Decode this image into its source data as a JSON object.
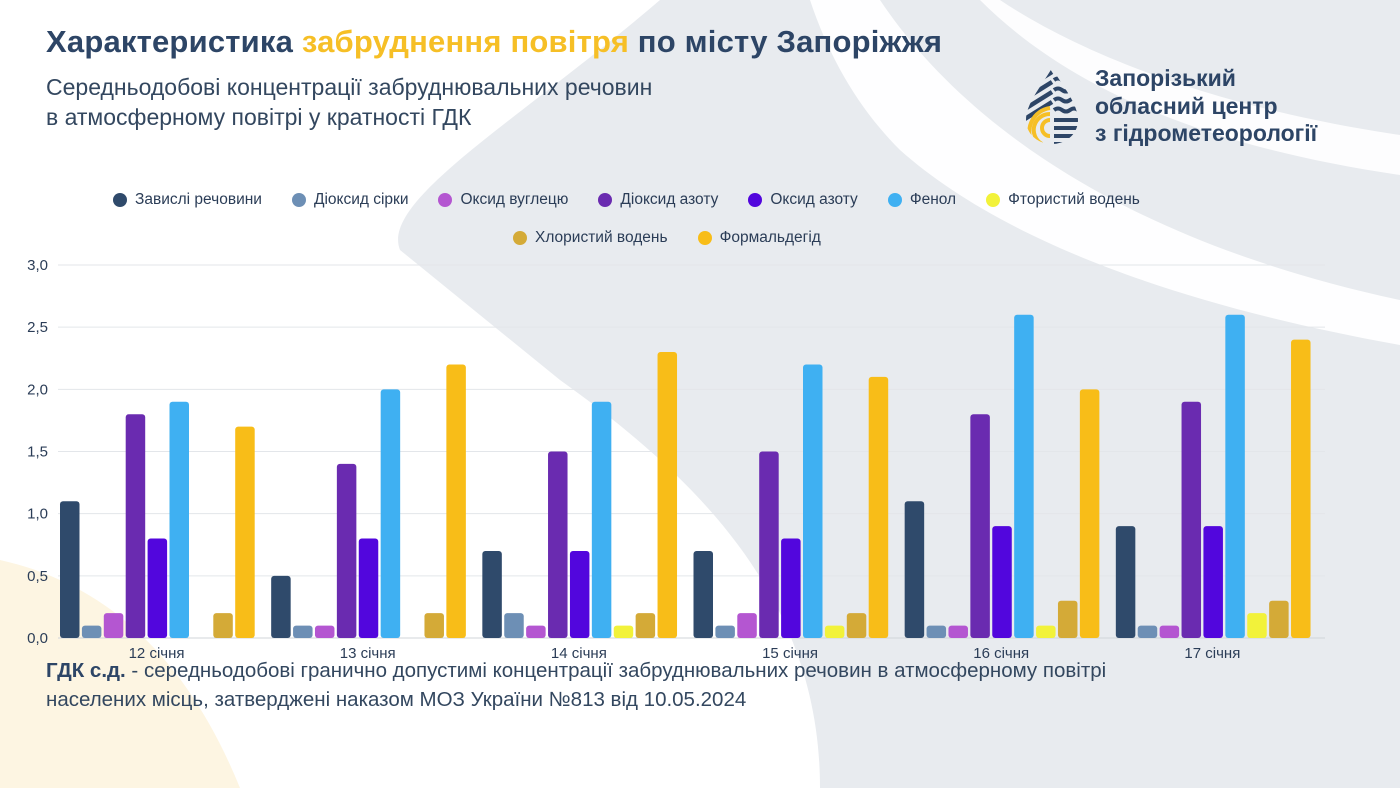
{
  "header": {
    "title_part1": "Характеристика ",
    "title_highlight": "забруднення повітря",
    "title_part2": " по місту Запоріжжя",
    "subtitle_line1": "Середньодобові концентрації забруднювальних речовин",
    "subtitle_line2": "в атмосферному повітрі у кратності ГДК"
  },
  "organization": {
    "logo_icon": "water-drop-logo-icon",
    "line1": "Запорізький",
    "line2": "обласний центр",
    "line3": "з гідрометеорології"
  },
  "colors": {
    "title_dark": "#2d4566",
    "title_accent": "#f6bf26"
  },
  "chart_data": {
    "type": "bar",
    "title": "",
    "xlabel": "",
    "ylabel": "",
    "ylim": [
      0,
      3.0
    ],
    "yticks": [
      "0,0",
      "0,5",
      "1,0",
      "1,5",
      "2,0",
      "2,5",
      "3,0"
    ],
    "ytick_values": [
      0,
      0.5,
      1.0,
      1.5,
      2.0,
      2.5,
      3.0
    ],
    "grid": true,
    "legend_position": "top-center",
    "categories": [
      "12 січня",
      "13 січня",
      "14 січня",
      "15 січня",
      "16 січня",
      "17 січня"
    ],
    "series": [
      {
        "name": "Завислі речовини",
        "color": "#2f4a6b",
        "values": [
          1.1,
          0.5,
          0.7,
          0.7,
          1.1,
          0.9
        ]
      },
      {
        "name": "Діоксид сірки",
        "color": "#6d8fb5",
        "values": [
          0.1,
          0.1,
          0.2,
          0.1,
          0.1,
          0.1
        ]
      },
      {
        "name": "Оксид вуглецю",
        "color": "#b456d1",
        "values": [
          0.2,
          0.1,
          0.1,
          0.2,
          0.1,
          0.1
        ]
      },
      {
        "name": "Діоксид азоту",
        "color": "#6a2bb0",
        "values": [
          1.8,
          1.4,
          1.5,
          1.5,
          1.8,
          1.9
        ]
      },
      {
        "name": "Оксид азоту",
        "color": "#5206dd",
        "values": [
          0.8,
          0.8,
          0.7,
          0.8,
          0.9,
          0.9
        ]
      },
      {
        "name": "Фенол",
        "color": "#3fb0f2",
        "values": [
          1.9,
          2.0,
          1.9,
          2.2,
          2.6,
          2.6
        ]
      },
      {
        "name": "Фтористий водень",
        "color": "#f2f23a",
        "values": [
          0.0,
          0.0,
          0.1,
          0.1,
          0.1,
          0.2
        ]
      },
      {
        "name": "Хлористий водень",
        "color": "#d4aa37",
        "values": [
          0.2,
          0.2,
          0.2,
          0.2,
          0.3,
          0.3
        ]
      },
      {
        "name": "Формальдегід",
        "color": "#f8bd18",
        "values": [
          1.7,
          2.2,
          2.3,
          2.1,
          2.0,
          2.4
        ]
      }
    ]
  },
  "footnote": {
    "term": "ГДК с.д.",
    "line1_rest": " - середньодобові гранично допустимі концентрації забруднювальних речовин в атмосферному повітрі",
    "line2": "населених місць, затверджені наказом МОЗ України №813 від 10.05.2024"
  }
}
